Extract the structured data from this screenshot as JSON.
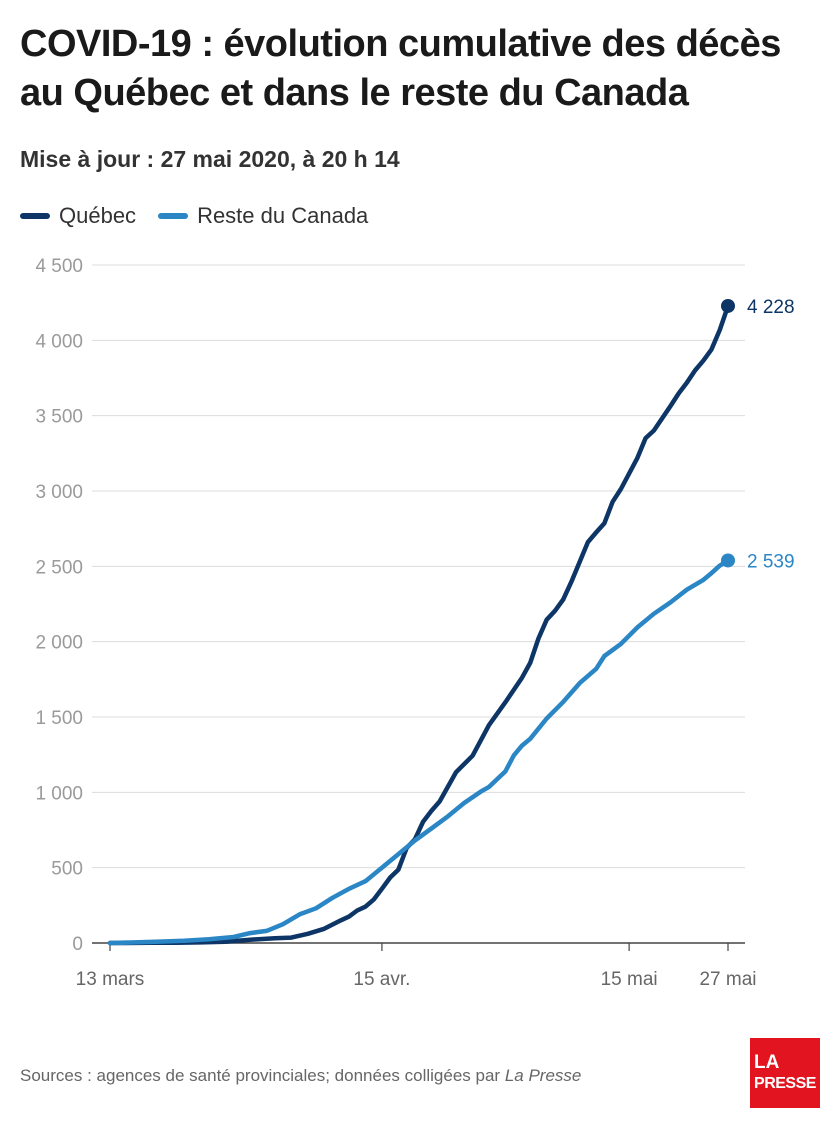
{
  "header": {
    "title": "COVID-19 : évolution cumulative des décès au Québec et dans le reste du Canada",
    "subtitle": "Mise à jour : 27 mai 2020, à 20 h 14"
  },
  "footer": {
    "source_prefix": "Sources : agences de santé provinciales; données colligées par ",
    "source_publication": "La Presse"
  },
  "logo": {
    "line1": "LA",
    "line2": "PRESSE",
    "color": "#e1141f"
  },
  "chart_data": {
    "type": "line",
    "x_axis": {
      "start": "2020-03-13",
      "end": "2020-05-27",
      "ticks": [
        {
          "date": "2020-03-13",
          "label": "13 mars"
        },
        {
          "date": "2020-04-15",
          "label": "15 avr."
        },
        {
          "date": "2020-05-15",
          "label": "15 mai"
        },
        {
          "date": "2020-05-27",
          "label": "27 mai"
        }
      ]
    },
    "y_axis": {
      "range": [
        0,
        4500
      ],
      "ticks": [
        {
          "value": 0,
          "label": "0"
        },
        {
          "value": 500,
          "label": "500"
        },
        {
          "value": 1000,
          "label": "1 000"
        },
        {
          "value": 1500,
          "label": "1 500"
        },
        {
          "value": 2000,
          "label": "2 000"
        },
        {
          "value": 2500,
          "label": "2 500"
        },
        {
          "value": 3000,
          "label": "3 000"
        },
        {
          "value": 3500,
          "label": "3 500"
        },
        {
          "value": 4000,
          "label": "4 000"
        },
        {
          "value": 4500,
          "label": "4 500"
        }
      ]
    },
    "grid": true,
    "legend_position": "top-left",
    "series": [
      {
        "name": "Québec",
        "color": "#0d3566",
        "end_label": "4 228",
        "points": [
          [
            "2020-03-13",
            0
          ],
          [
            "2020-03-15",
            0
          ],
          [
            "2020-03-18",
            1
          ],
          [
            "2020-03-21",
            2
          ],
          [
            "2020-03-24",
            4
          ],
          [
            "2020-03-27",
            8
          ],
          [
            "2020-03-30",
            22
          ],
          [
            "2020-04-02",
            31
          ],
          [
            "2020-04-04",
            36
          ],
          [
            "2020-04-06",
            61
          ],
          [
            "2020-04-08",
            94
          ],
          [
            "2020-04-10",
            150
          ],
          [
            "2020-04-11",
            175
          ],
          [
            "2020-04-12",
            216
          ],
          [
            "2020-04-13",
            241
          ],
          [
            "2020-04-14",
            288
          ],
          [
            "2020-04-15",
            360
          ],
          [
            "2020-04-16",
            435
          ],
          [
            "2020-04-17",
            487
          ],
          [
            "2020-04-18",
            630
          ],
          [
            "2020-04-19",
            688
          ],
          [
            "2020-04-20",
            805
          ],
          [
            "2020-04-21",
            877
          ],
          [
            "2020-04-22",
            939
          ],
          [
            "2020-04-24",
            1134
          ],
          [
            "2020-04-26",
            1243
          ],
          [
            "2020-04-28",
            1446
          ],
          [
            "2020-04-30",
            1599
          ],
          [
            "2020-05-02",
            1761
          ],
          [
            "2020-05-03",
            1859
          ],
          [
            "2020-05-04",
            2022
          ],
          [
            "2020-05-05",
            2146
          ],
          [
            "2020-05-06",
            2205
          ],
          [
            "2020-05-07",
            2280
          ],
          [
            "2020-05-08",
            2398
          ],
          [
            "2020-05-10",
            2661
          ],
          [
            "2020-05-11",
            2725
          ],
          [
            "2020-05-12",
            2786
          ],
          [
            "2020-05-13",
            2928
          ],
          [
            "2020-05-14",
            3013
          ],
          [
            "2020-05-16",
            3220
          ],
          [
            "2020-05-17",
            3351
          ],
          [
            "2020-05-18",
            3401
          ],
          [
            "2020-05-20",
            3562
          ],
          [
            "2020-05-21",
            3647
          ],
          [
            "2020-05-22",
            3718
          ],
          [
            "2020-05-23",
            3800
          ],
          [
            "2020-05-24",
            3865
          ],
          [
            "2020-05-25",
            3940
          ],
          [
            "2020-05-26",
            4069
          ],
          [
            "2020-05-27",
            4228
          ]
        ]
      },
      {
        "name": "Reste du Canada",
        "color": "#2b86c5",
        "end_label": "2 539",
        "points": [
          [
            "2020-03-13",
            0
          ],
          [
            "2020-03-16",
            4
          ],
          [
            "2020-03-19",
            9
          ],
          [
            "2020-03-22",
            15
          ],
          [
            "2020-03-25",
            25
          ],
          [
            "2020-03-28",
            40
          ],
          [
            "2020-03-30",
            66
          ],
          [
            "2020-04-01",
            80
          ],
          [
            "2020-04-03",
            125
          ],
          [
            "2020-04-05",
            190
          ],
          [
            "2020-04-07",
            230
          ],
          [
            "2020-04-09",
            300
          ],
          [
            "2020-04-11",
            360
          ],
          [
            "2020-04-13",
            410
          ],
          [
            "2020-04-15",
            500
          ],
          [
            "2020-04-17",
            590
          ],
          [
            "2020-04-19",
            680
          ],
          [
            "2020-04-21",
            760
          ],
          [
            "2020-04-23",
            840
          ],
          [
            "2020-04-25",
            930
          ],
          [
            "2020-04-27",
            1005
          ],
          [
            "2020-04-28",
            1036
          ],
          [
            "2020-04-30",
            1140
          ],
          [
            "2020-05-01",
            1245
          ],
          [
            "2020-05-02",
            1310
          ],
          [
            "2020-05-03",
            1355
          ],
          [
            "2020-05-05",
            1490
          ],
          [
            "2020-05-07",
            1600
          ],
          [
            "2020-05-09",
            1725
          ],
          [
            "2020-05-11",
            1820
          ],
          [
            "2020-05-12",
            1905
          ],
          [
            "2020-05-14",
            1985
          ],
          [
            "2020-05-16",
            2095
          ],
          [
            "2020-05-18",
            2185
          ],
          [
            "2020-05-20",
            2260
          ],
          [
            "2020-05-22",
            2345
          ],
          [
            "2020-05-24",
            2410
          ],
          [
            "2020-05-25",
            2455
          ],
          [
            "2020-05-26",
            2505
          ],
          [
            "2020-05-27",
            2539
          ]
        ]
      }
    ]
  }
}
